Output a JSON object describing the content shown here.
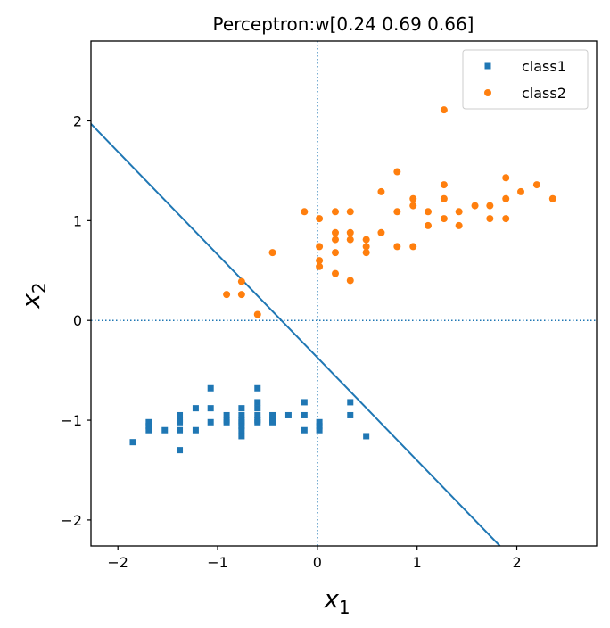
{
  "chart_data": {
    "type": "scatter",
    "title": "Perceptron:w[0.24 0.69 0.66]",
    "xlabel": {
      "main": "x",
      "sub": "1"
    },
    "ylabel": {
      "main": "x",
      "sub": "2"
    },
    "xlim": [
      -2.27,
      2.8
    ],
    "ylim": [
      -2.26,
      2.8
    ],
    "xticks": [
      -2,
      -1,
      0,
      1,
      2
    ],
    "yticks": [
      -2,
      -1,
      0,
      1,
      2
    ],
    "xtick_labels": [
      "−2",
      "−1",
      "0",
      "1",
      "2"
    ],
    "ytick_labels": [
      "−2",
      "−1",
      "0",
      "1",
      "2"
    ],
    "grid": false,
    "legend_position": "top-right",
    "series": [
      {
        "name": "class1",
        "marker": "square",
        "color": "#1f77b4",
        "points": [
          [
            -1.85,
            -1.22
          ],
          [
            -1.69,
            -1.02
          ],
          [
            -1.69,
            -1.06
          ],
          [
            -1.69,
            -1.1
          ],
          [
            -1.53,
            -1.1
          ],
          [
            -1.38,
            -0.95
          ],
          [
            -1.38,
            -1.0
          ],
          [
            -1.38,
            -1.02
          ],
          [
            -1.38,
            -1.1
          ],
          [
            -1.38,
            -1.3
          ],
          [
            -1.22,
            -0.88
          ],
          [
            -1.22,
            -1.1
          ],
          [
            -1.07,
            -0.68
          ],
          [
            -1.07,
            -0.88
          ],
          [
            -1.07,
            -1.02
          ],
          [
            -0.91,
            -0.95
          ],
          [
            -0.91,
            -1.0
          ],
          [
            -0.91,
            -1.02
          ],
          [
            -0.76,
            -0.88
          ],
          [
            -0.76,
            -0.95
          ],
          [
            -0.76,
            -1.0
          ],
          [
            -0.76,
            -1.02
          ],
          [
            -0.76,
            -1.06
          ],
          [
            -0.76,
            -1.1
          ],
          [
            -0.76,
            -1.16
          ],
          [
            -0.6,
            -0.68
          ],
          [
            -0.6,
            -0.82
          ],
          [
            -0.6,
            -0.88
          ],
          [
            -0.6,
            -0.95
          ],
          [
            -0.6,
            -1.0
          ],
          [
            -0.6,
            -1.02
          ],
          [
            -0.45,
            -0.95
          ],
          [
            -0.45,
            -1.0
          ],
          [
            -0.45,
            -1.02
          ],
          [
            -0.29,
            -0.95
          ],
          [
            -0.13,
            -0.82
          ],
          [
            -0.13,
            -0.95
          ],
          [
            -0.13,
            -1.1
          ],
          [
            0.02,
            -1.02
          ],
          [
            0.02,
            -1.06
          ],
          [
            0.02,
            -1.1
          ],
          [
            0.33,
            -0.82
          ],
          [
            0.33,
            -0.95
          ],
          [
            0.49,
            -1.16
          ]
        ]
      },
      {
        "name": "class2",
        "marker": "circle",
        "color": "#ff7f0e",
        "points": [
          [
            -0.91,
            0.26
          ],
          [
            -0.76,
            0.26
          ],
          [
            -0.76,
            0.39
          ],
          [
            -0.6,
            0.06
          ],
          [
            -0.45,
            0.68
          ],
          [
            -0.13,
            1.09
          ],
          [
            0.02,
            1.02
          ],
          [
            0.02,
            0.74
          ],
          [
            0.02,
            0.6
          ],
          [
            0.02,
            0.54
          ],
          [
            0.18,
            1.09
          ],
          [
            0.18,
            0.88
          ],
          [
            0.18,
            0.81
          ],
          [
            0.18,
            0.68
          ],
          [
            0.18,
            0.47
          ],
          [
            0.33,
            1.09
          ],
          [
            0.33,
            0.88
          ],
          [
            0.33,
            0.81
          ],
          [
            0.33,
            0.4
          ],
          [
            0.49,
            0.81
          ],
          [
            0.49,
            0.74
          ],
          [
            0.49,
            0.68
          ],
          [
            0.64,
            1.29
          ],
          [
            0.64,
            0.88
          ],
          [
            0.8,
            1.49
          ],
          [
            0.8,
            1.09
          ],
          [
            0.8,
            0.74
          ],
          [
            0.96,
            1.22
          ],
          [
            0.96,
            1.15
          ],
          [
            0.96,
            0.74
          ],
          [
            1.11,
            1.09
          ],
          [
            1.11,
            0.95
          ],
          [
            1.27,
            2.11
          ],
          [
            1.27,
            1.36
          ],
          [
            1.27,
            1.22
          ],
          [
            1.27,
            1.02
          ],
          [
            1.42,
            1.09
          ],
          [
            1.42,
            0.95
          ],
          [
            1.58,
            1.15
          ],
          [
            1.73,
            1.15
          ],
          [
            1.73,
            1.02
          ],
          [
            1.89,
            1.43
          ],
          [
            1.89,
            1.22
          ],
          [
            1.89,
            1.02
          ],
          [
            2.04,
            1.29
          ],
          [
            2.2,
            1.36
          ],
          [
            2.36,
            1.22
          ]
        ]
      }
    ],
    "decision_boundary": {
      "color": "#1f77b4",
      "w": [
        0.24,
        0.69,
        0.66
      ],
      "points": [
        [
          -2.27,
          1.97
        ],
        [
          1.83,
          -2.26
        ]
      ]
    },
    "reference_lines": {
      "color": "#1f77b4",
      "style": "dotted",
      "x": 0,
      "y": 0
    }
  }
}
